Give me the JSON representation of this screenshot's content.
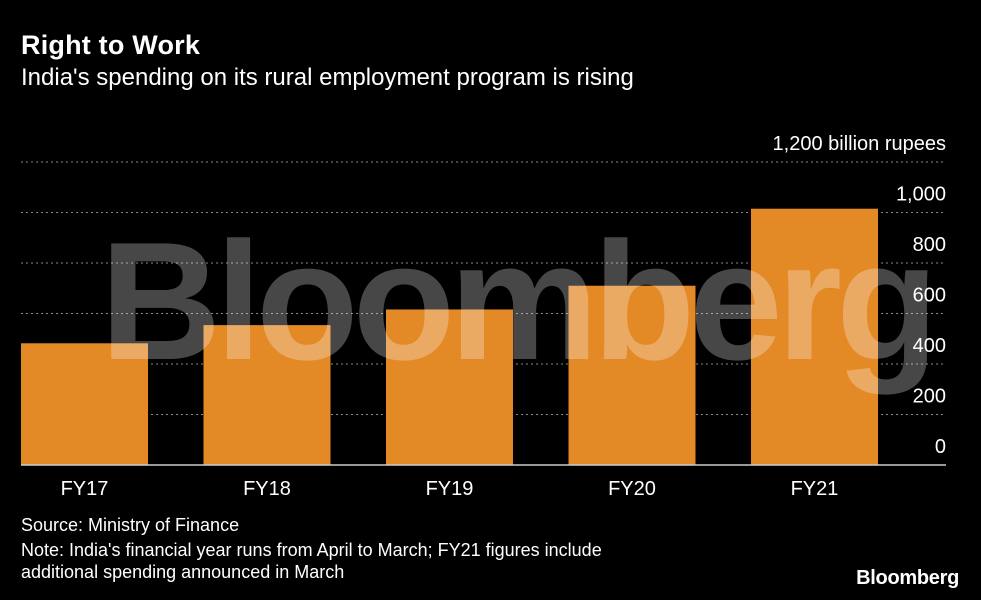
{
  "header": {
    "title": "Right to Work",
    "subtitle": "India's spending on its rural employment program is rising"
  },
  "footer": {
    "source": "Source: Ministry of Finance",
    "note_line1": "Note: India's financial year runs from April to March; FY21 figures include",
    "note_line2": "additional spending announced in March",
    "brand": "Bloomberg"
  },
  "watermark": "Bloomberg",
  "colors": {
    "bar": "#E38A27",
    "background": "#000000",
    "grid": "#8a8a8a",
    "text": "#ffffff"
  },
  "chart_data": {
    "type": "bar",
    "title": "Right to Work",
    "subtitle": "India's spending on its rural employment program is rising",
    "categories": [
      "FY17",
      "FY18",
      "FY19",
      "FY20",
      "FY21"
    ],
    "values": [
      482,
      554,
      616,
      710,
      1015
    ],
    "ylim": [
      0,
      1200
    ],
    "yticks": [
      0,
      200,
      400,
      600,
      800,
      1000,
      1200
    ],
    "ytick_labels": [
      "0",
      "200",
      "400",
      "600",
      "800",
      "1,000",
      "1,200 billion rupees"
    ],
    "ylabel": "",
    "xlabel": "",
    "grid": true,
    "axis_side": "right"
  }
}
